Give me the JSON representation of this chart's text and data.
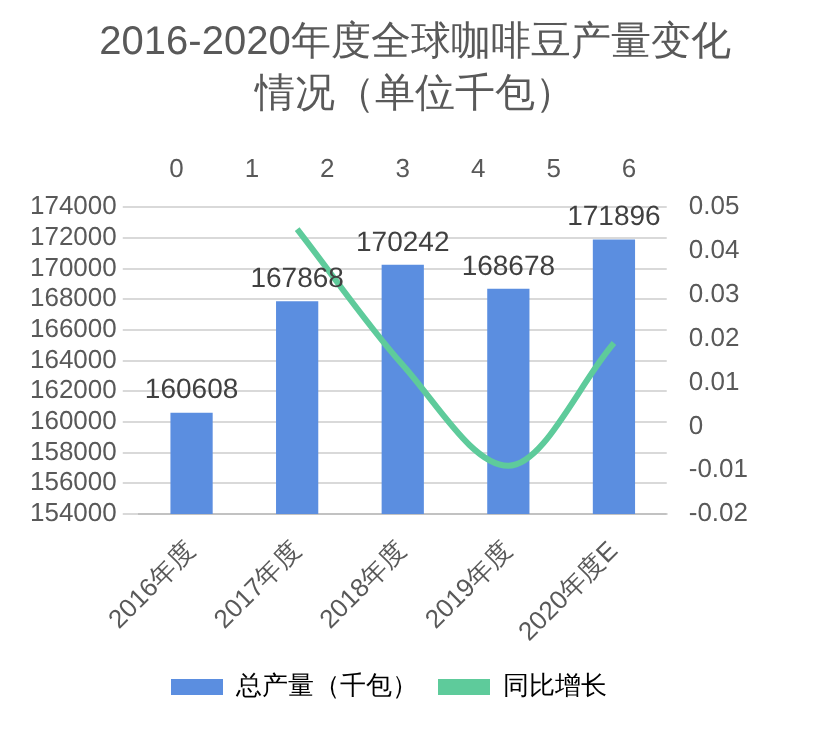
{
  "chart_data": {
    "type": "bar",
    "title": "2016-2020年度全球咖啡豆产量变化情况（单位千包）",
    "categories": [
      "2016年度",
      "2017年度",
      "2018年度",
      "2019年度",
      "2020年度E"
    ],
    "series": [
      {
        "name": "总产量（千包）",
        "type": "bar",
        "color": "#5b8ee0",
        "values": [
          160608,
          167868,
          170242,
          168678,
          171896
        ],
        "value_labels": [
          "160608",
          "167868",
          "170242",
          "168678",
          "171896"
        ]
      },
      {
        "name": "同比增长",
        "type": "line",
        "axis": "y2",
        "color": "#5ecb9b",
        "values": [
          null,
          0.045,
          0.014,
          -0.009,
          0.019
        ]
      }
    ],
    "ylim": [
      154000,
      174000
    ],
    "yticks": [
      154000,
      156000,
      158000,
      160000,
      162000,
      164000,
      166000,
      168000,
      170000,
      172000,
      174000
    ],
    "y2lim": [
      -0.02,
      0.05
    ],
    "y2ticks": [
      -0.02,
      -0.01,
      0,
      0.01,
      0.02,
      0.03,
      0.04,
      0.05
    ],
    "x2lim": [
      0,
      6
    ],
    "x2ticks": [
      0,
      1,
      2,
      3,
      4,
      5,
      6
    ],
    "grid": "y",
    "legend": "bottom",
    "marker": "none"
  }
}
